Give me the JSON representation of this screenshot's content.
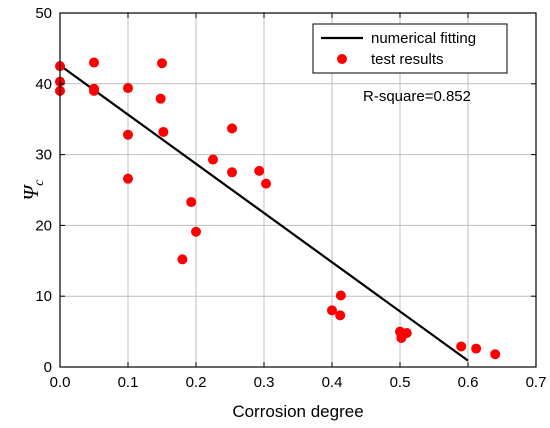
{
  "chart_data": {
    "type": "scatter",
    "xlabel": "Corrosion degree",
    "ylabel": {
      "main": "Ψ",
      "sub": "c"
    },
    "xlim": [
      0,
      0.7
    ],
    "ylim": [
      0,
      50
    ],
    "xticks": [
      "0.0",
      "0.1",
      "0.2",
      "0.3",
      "0.4",
      "0.5",
      "0.6",
      "0.7"
    ],
    "yticks": [
      "0",
      "10",
      "20",
      "30",
      "40",
      "50"
    ],
    "grid": true,
    "legend_position": "top-right",
    "annotation": "R-square=0.852",
    "series": [
      {
        "name": "numerical fitting",
        "kind": "line",
        "color": "#000000",
        "points": [
          [
            0.0,
            42.6
          ],
          [
            0.6,
            0.9
          ]
        ]
      },
      {
        "name": "test results",
        "kind": "scatter",
        "color": "#ff0000",
        "points": [
          [
            0.0,
            42.5
          ],
          [
            0.0,
            40.3
          ],
          [
            0.0,
            39.0
          ],
          [
            0.05,
            43.0
          ],
          [
            0.05,
            39.3
          ],
          [
            0.05,
            39.0
          ],
          [
            0.1,
            39.4
          ],
          [
            0.1,
            32.8
          ],
          [
            0.1,
            26.6
          ],
          [
            0.15,
            42.9
          ],
          [
            0.148,
            37.9
          ],
          [
            0.152,
            33.2
          ],
          [
            0.18,
            15.2
          ],
          [
            0.193,
            23.3
          ],
          [
            0.2,
            19.1
          ],
          [
            0.225,
            29.3
          ],
          [
            0.253,
            33.7
          ],
          [
            0.253,
            27.5
          ],
          [
            0.293,
            27.7
          ],
          [
            0.303,
            25.9
          ],
          [
            0.4,
            8.0
          ],
          [
            0.413,
            10.1
          ],
          [
            0.412,
            7.3
          ],
          [
            0.5,
            5.0
          ],
          [
            0.502,
            4.1
          ],
          [
            0.51,
            4.8
          ],
          [
            0.59,
            2.9
          ],
          [
            0.612,
            2.6
          ],
          [
            0.64,
            1.8
          ]
        ]
      }
    ]
  }
}
